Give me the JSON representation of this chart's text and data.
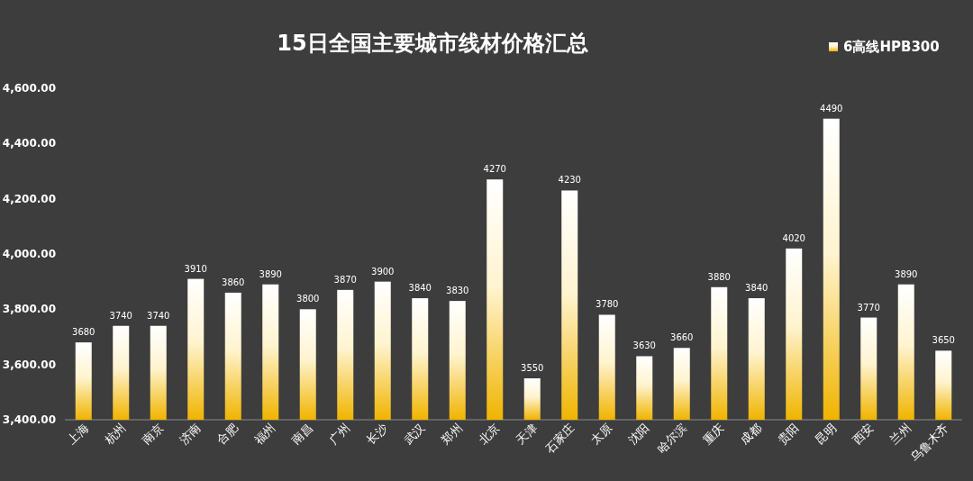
{
  "chart_data": {
    "type": "bar",
    "title": "15日全国主要城市线材价格汇总",
    "categories": [
      "上海",
      "杭州",
      "南京",
      "济南",
      "合肥",
      "福州",
      "南昌",
      "广州",
      "长沙",
      "武汉",
      "郑州",
      "北京",
      "天津",
      "石家庄",
      "太原",
      "沈阳",
      "哈尔滨",
      "重庆",
      "成都",
      "贵阳",
      "昆明",
      "西安",
      "兰州",
      "乌鲁木齐"
    ],
    "series": [
      {
        "name": "6高线HPB300",
        "color": "#f0b400",
        "values": [
          3680,
          3740,
          3740,
          3910,
          3860,
          3890,
          3800,
          3870,
          3900,
          3840,
          3830,
          4270,
          3550,
          4230,
          3780,
          3630,
          3660,
          3880,
          3840,
          4020,
          4490,
          3770,
          3890,
          3650
        ]
      }
    ],
    "ylim": [
      3400,
      4600
    ],
    "yticks": [
      {
        "value": 3400,
        "label": "3,400.00"
      },
      {
        "value": 3600,
        "label": "3,600.00"
      },
      {
        "value": 3800,
        "label": "3,800.00"
      },
      {
        "value": 4000,
        "label": "4,000.00"
      },
      {
        "value": 4200,
        "label": "4,200.00"
      },
      {
        "value": 4400,
        "label": "4,400.00"
      },
      {
        "value": 4600,
        "label": "4,600.00"
      }
    ],
    "data_labels": true,
    "legend": "top right"
  }
}
